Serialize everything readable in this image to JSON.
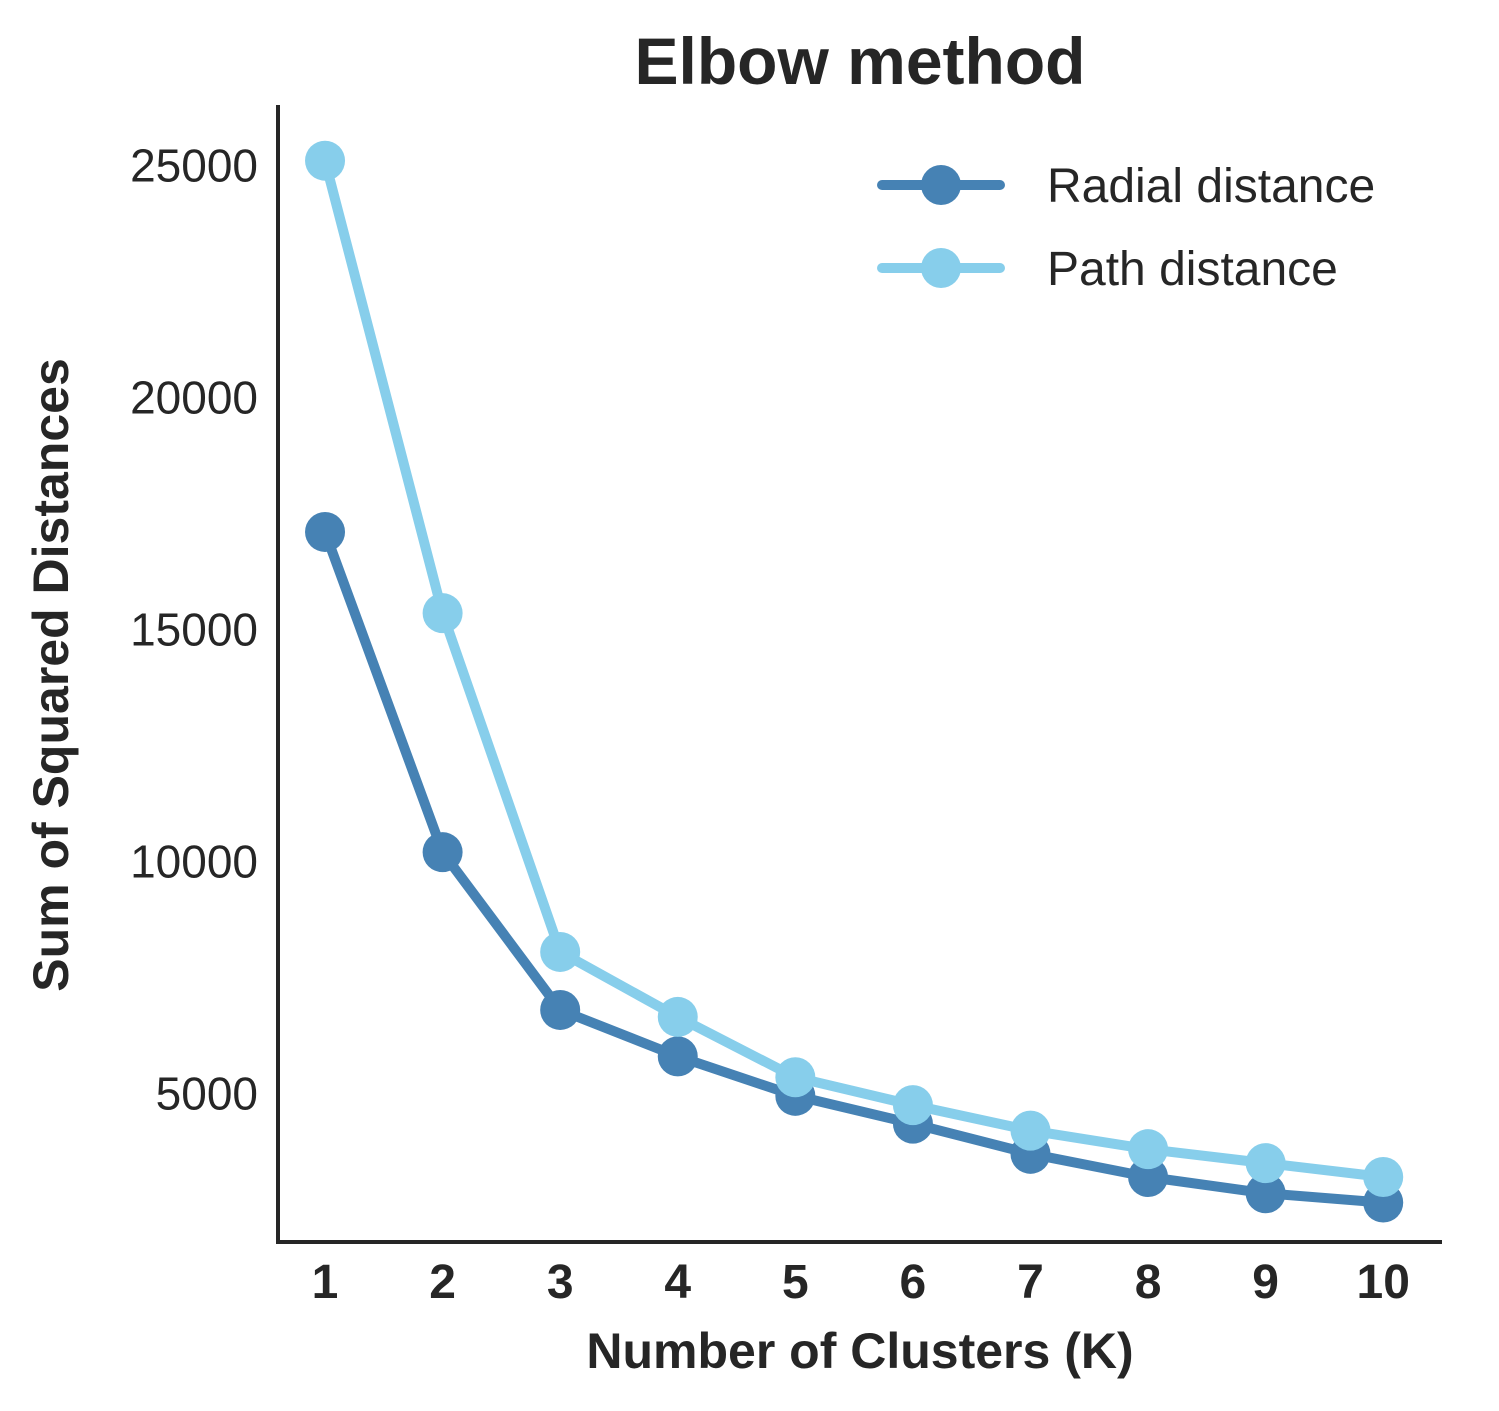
{
  "chart_data": {
    "type": "line",
    "title": "Elbow method",
    "xlabel": "Number of Clusters (K)",
    "ylabel": "Sum of Squared Distances",
    "x": [
      1,
      2,
      3,
      4,
      5,
      6,
      7,
      8,
      9,
      10
    ],
    "x_tick_labels": [
      "1",
      "2",
      "3",
      "4",
      "5",
      "6",
      "7",
      "8",
      "9",
      "10"
    ],
    "y_ticks": [
      5000,
      10000,
      15000,
      20000,
      25000
    ],
    "y_tick_labels": [
      "5000",
      "10000",
      "15000",
      "20000",
      "25000"
    ],
    "xlim": [
      0.6,
      10.5
    ],
    "ylim": [
      1800,
      26300
    ],
    "grid": false,
    "legend_position": "top-right",
    "series": [
      {
        "name": "Radial distance",
        "color": "#4682b4",
        "values": [
          17100,
          10200,
          6800,
          5800,
          4950,
          4350,
          3700,
          3200,
          2850,
          2650
        ]
      },
      {
        "name": "Path distance",
        "color": "#87ceeb",
        "values": [
          25100,
          15350,
          8050,
          6650,
          5350,
          4750,
          4200,
          3800,
          3500,
          3200
        ]
      }
    ]
  }
}
